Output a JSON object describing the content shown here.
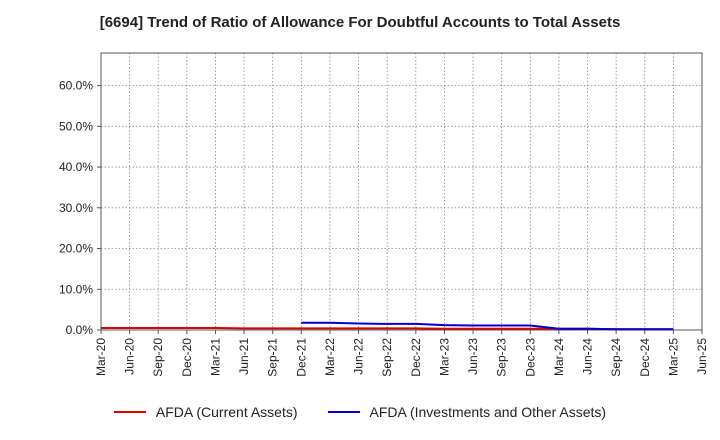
{
  "title": "[6694]  Trend of Ratio of Allowance For Doubtful Accounts to Total Assets",
  "chart_data": {
    "type": "line",
    "title": "[6694]  Trend of Ratio of Allowance For Doubtful Accounts to Total Assets",
    "xlabel": "",
    "ylabel": "",
    "ylim": [
      0,
      0.68
    ],
    "y_ticks": [
      0,
      0.1,
      0.2,
      0.3,
      0.4,
      0.5,
      0.6
    ],
    "y_tick_labels": [
      "0.0%",
      "10.0%",
      "20.0%",
      "30.0%",
      "40.0%",
      "50.0%",
      "60.0%"
    ],
    "grid": true,
    "legend": "bottom",
    "x_tick_labels": [
      "Mar-20",
      "Jun-20",
      "Sep-20",
      "Dec-20",
      "Mar-21",
      "Jun-21",
      "Sep-21",
      "Dec-21",
      "Mar-22",
      "Jun-22",
      "Sep-22",
      "Dec-22",
      "Mar-23",
      "Jun-23",
      "Sep-23",
      "Dec-23",
      "Mar-24",
      "Jun-24",
      "Sep-24",
      "Dec-24",
      "Mar-25",
      "Jun-25"
    ],
    "series": [
      {
        "name": "AFDA (Current Assets)",
        "color": "#dd0000",
        "x": [
          "Mar-20",
          "Jun-20",
          "Sep-20",
          "Dec-20",
          "Mar-21",
          "Jun-21",
          "Sep-21",
          "Dec-21",
          "Mar-22",
          "Jun-22",
          "Sep-22",
          "Dec-22",
          "Mar-23",
          "Jun-23",
          "Sep-23",
          "Dec-23",
          "Mar-24",
          "Jun-24",
          "Sep-24",
          "Dec-24",
          "Mar-25"
        ],
        "values": [
          0.005,
          0.005,
          0.005,
          0.005,
          0.005,
          0.004,
          0.004,
          0.004,
          0.004,
          0.004,
          0.004,
          0.004,
          0.003,
          0.003,
          0.003,
          0.003,
          0.003,
          0.003,
          0.002,
          0.002,
          0.002
        ]
      },
      {
        "name": "AFDA (Investments and Other Assets)",
        "color": "#0000cc",
        "x": [
          "Dec-21",
          "Mar-22",
          "Jun-22",
          "Sep-22",
          "Dec-22",
          "Mar-23",
          "Jun-23",
          "Sep-23",
          "Dec-23",
          "Mar-24",
          "Jun-24",
          "Sep-24",
          "Dec-24",
          "Mar-25"
        ],
        "values": [
          0.018,
          0.018,
          0.016,
          0.015,
          0.015,
          0.012,
          0.011,
          0.011,
          0.011,
          0.003,
          0.003,
          0.002,
          0.002,
          0.002
        ]
      }
    ]
  }
}
